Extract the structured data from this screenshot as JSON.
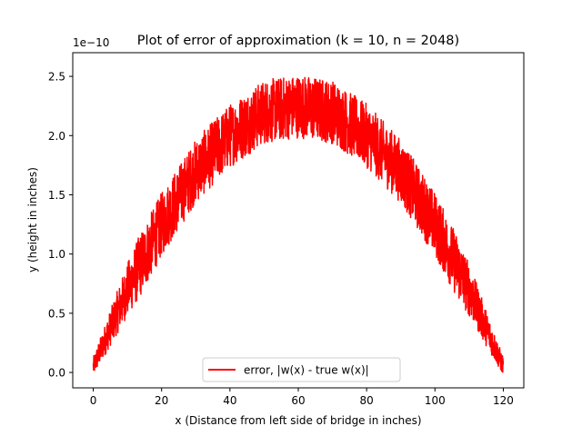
{
  "chart_data": {
    "type": "line",
    "title": "Plot of error of approximation (k = 10, n = 2048)",
    "xlabel": "x (Distance from left side of bridge in inches)",
    "ylabel": "y (height in inches)",
    "y_offset_text": "1e−10",
    "xlim": [
      -6,
      126
    ],
    "ylim": [
      -0.13,
      2.7
    ],
    "x_ticks": [
      0,
      20,
      40,
      60,
      80,
      100,
      120
    ],
    "x_tick_labels": [
      "0",
      "20",
      "40",
      "60",
      "80",
      "100",
      "120"
    ],
    "y_ticks": [
      0.0,
      0.5,
      1.0,
      1.5,
      2.0,
      2.5
    ],
    "y_tick_labels": [
      "0.0",
      "0.5",
      "1.0",
      "1.5",
      "2.0",
      "2.5"
    ],
    "y_scale": "1e-10",
    "grid": false,
    "legend_placement": "lower center",
    "series": [
      {
        "name": "error, |w(x) - true w(x)|",
        "color": "#ff0000",
        "noise_band": 0.3,
        "samples": 2049,
        "x": [
          0,
          10,
          20,
          30,
          40,
          50,
          60,
          70,
          80,
          90,
          100,
          110,
          120
        ],
        "y": [
          0.05,
          0.7,
          1.25,
          1.7,
          2.0,
          2.2,
          2.25,
          2.2,
          2.0,
          1.7,
          1.25,
          0.7,
          0.05
        ]
      }
    ]
  }
}
